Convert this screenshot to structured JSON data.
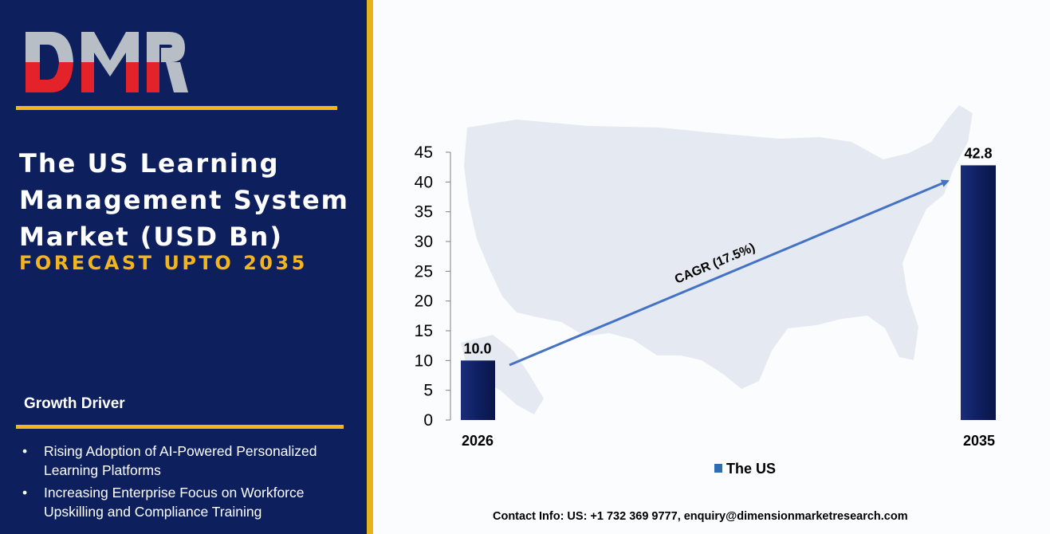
{
  "brand": {
    "logo_text": "DMR"
  },
  "header": {
    "title": "The US Learning Management System Market (USD Bn)",
    "subtitle": "FORECAST UPTO 2035"
  },
  "growth_driver": {
    "heading": "Growth Driver",
    "items": [
      "Rising Adoption of AI-Powered Personalized Learning Platforms",
      "Increasing Enterprise Focus on Workforce Upskilling and Compliance Training"
    ]
  },
  "chart_data": {
    "type": "bar",
    "categories": [
      "2026",
      "2035"
    ],
    "series": [
      {
        "name": "The US",
        "values": [
          10.0,
          42.8
        ]
      }
    ],
    "data_labels": [
      "10.0",
      "42.8"
    ],
    "ylim": [
      0,
      45
    ],
    "yticks": [
      0,
      5,
      10,
      15,
      20,
      25,
      30,
      35,
      40,
      45
    ],
    "annotation": "CAGR (17.5%)",
    "legend": {
      "position": "bottom",
      "label": "The US"
    },
    "grid": false,
    "background": "US map silhouette",
    "colors": {
      "bar": "#0f1f62",
      "arrow": "#4472c4"
    }
  },
  "colors": {
    "panel": "#0d1f5c",
    "accent": "#f2b51c",
    "logo_red": "#e4222a",
    "logo_grey": "#b8bec6"
  },
  "footer": {
    "contact": "Contact Info: US: +1 732 369 9777, enquiry@dimensionmarketresearch.com"
  }
}
